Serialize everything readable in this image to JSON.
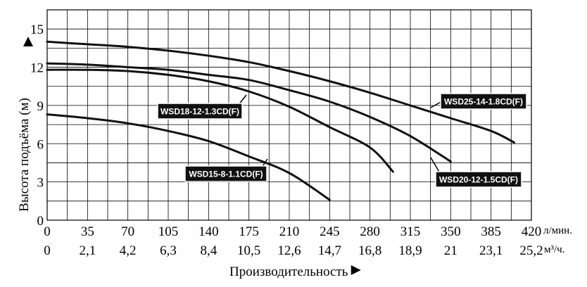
{
  "chart_data": {
    "type": "line",
    "ylabel": "Высота подъёма (м)",
    "xlabel": "Производительность",
    "x_unit_primary": "л/мин.",
    "x_unit_secondary": "м³/ч.",
    "xlim": [
      0,
      420
    ],
    "ylim": [
      0,
      16.5
    ],
    "grid": true,
    "x_ticks_primary": [
      "0",
      "35",
      "70",
      "105",
      "140",
      "175",
      "210",
      "245",
      "280",
      "315",
      "350",
      "385",
      "420"
    ],
    "x_ticks_secondary": [
      "0",
      "2,1",
      "4,2",
      "6,3",
      "8,4",
      "10,5",
      "12,6",
      "14,7",
      "16,8",
      "18,9",
      "21",
      "23,1",
      "25,2"
    ],
    "y_ticks": [
      "0",
      "3",
      "6",
      "9",
      "12",
      "15"
    ],
    "series": [
      {
        "name": "WSD15-8-1.1CD(F)",
        "color": "#111111",
        "points": [
          [
            0,
            8.3
          ],
          [
            35,
            8.0
          ],
          [
            70,
            7.6
          ],
          [
            105,
            7.0
          ],
          [
            140,
            6.2
          ],
          [
            175,
            5.0
          ],
          [
            210,
            3.7
          ],
          [
            245,
            1.6
          ]
        ]
      },
      {
        "name": "WSD18-12-1.3CD(F)",
        "color": "#111111",
        "points": [
          [
            0,
            11.8
          ],
          [
            35,
            11.8
          ],
          [
            70,
            11.7
          ],
          [
            105,
            11.4
          ],
          [
            140,
            10.9
          ],
          [
            175,
            10.1
          ],
          [
            210,
            8.9
          ],
          [
            245,
            7.3
          ],
          [
            280,
            5.7
          ],
          [
            300,
            3.8
          ]
        ]
      },
      {
        "name": "WSD20-12-1.5CD(F)",
        "color": "#111111",
        "points": [
          [
            0,
            12.3
          ],
          [
            35,
            12.2
          ],
          [
            70,
            12.0
          ],
          [
            105,
            11.8
          ],
          [
            140,
            11.4
          ],
          [
            175,
            11.0
          ],
          [
            210,
            10.2
          ],
          [
            245,
            9.3
          ],
          [
            280,
            8.1
          ],
          [
            315,
            6.6
          ],
          [
            350,
            4.6
          ]
        ]
      },
      {
        "name": "WSD25-14-1.8CD(F)",
        "color": "#111111",
        "points": [
          [
            0,
            14.0
          ],
          [
            35,
            13.8
          ],
          [
            70,
            13.6
          ],
          [
            105,
            13.3
          ],
          [
            140,
            12.9
          ],
          [
            175,
            12.4
          ],
          [
            210,
            11.7
          ],
          [
            245,
            10.9
          ],
          [
            280,
            10.0
          ],
          [
            315,
            9.0
          ],
          [
            350,
            8.0
          ],
          [
            385,
            7.0
          ],
          [
            405,
            6.1
          ]
        ]
      }
    ],
    "labels": [
      {
        "text": "WSD18-12-1.3CD(F)",
        "series": "WSD18-12-1.3CD(F)"
      },
      {
        "text": "WSD25-14-1.8CD(F)",
        "series": "WSD25-14-1.8CD(F)"
      },
      {
        "text": "WSD15-8-1.1CD(F)",
        "series": "WSD15-8-1.1CD(F)"
      },
      {
        "text": "WSD20-12-1.5CD(F)",
        "series": "WSD20-12-1.5CD(F)"
      }
    ]
  }
}
